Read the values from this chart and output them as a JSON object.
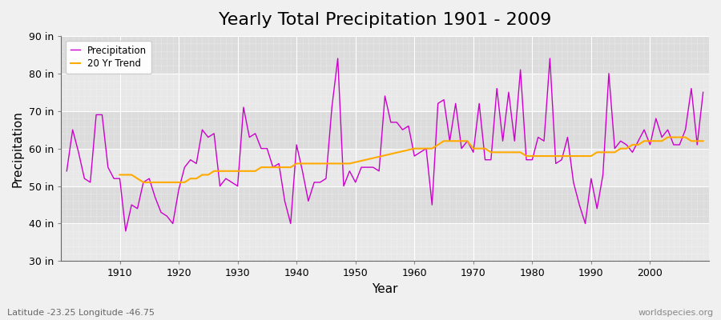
{
  "title": "Yearly Total Precipitation 1901 - 2009",
  "xlabel": "Year",
  "ylabel": "Precipitation",
  "subtitle": "Latitude -23.25 Longitude -46.75",
  "watermark": "worldspecies.org",
  "years": [
    1901,
    1902,
    1903,
    1904,
    1905,
    1906,
    1907,
    1908,
    1909,
    1910,
    1911,
    1912,
    1913,
    1914,
    1915,
    1916,
    1917,
    1918,
    1919,
    1920,
    1921,
    1922,
    1923,
    1924,
    1925,
    1926,
    1927,
    1928,
    1929,
    1930,
    1931,
    1932,
    1933,
    1934,
    1935,
    1936,
    1937,
    1938,
    1939,
    1940,
    1941,
    1942,
    1943,
    1944,
    1945,
    1946,
    1947,
    1948,
    1949,
    1950,
    1951,
    1952,
    1953,
    1954,
    1955,
    1956,
    1957,
    1958,
    1959,
    1960,
    1961,
    1962,
    1963,
    1964,
    1965,
    1966,
    1967,
    1968,
    1969,
    1970,
    1971,
    1972,
    1973,
    1974,
    1975,
    1976,
    1977,
    1978,
    1979,
    1980,
    1981,
    1982,
    1983,
    1984,
    1985,
    1986,
    1987,
    1988,
    1989,
    1990,
    1991,
    1992,
    1993,
    1994,
    1995,
    1996,
    1997,
    1998,
    1999,
    2000,
    2001,
    2002,
    2003,
    2004,
    2005,
    2006,
    2007,
    2008,
    2009
  ],
  "precip": [
    54,
    65,
    59,
    52,
    51,
    69,
    69,
    55,
    52,
    52,
    38,
    45,
    44,
    51,
    52,
    47,
    43,
    42,
    40,
    49,
    55,
    57,
    56,
    65,
    63,
    64,
    50,
    52,
    51,
    50,
    71,
    63,
    64,
    60,
    60,
    55,
    56,
    46,
    40,
    61,
    54,
    46,
    51,
    51,
    52,
    71,
    84,
    50,
    54,
    51,
    55,
    55,
    55,
    54,
    74,
    67,
    67,
    65,
    66,
    58,
    59,
    60,
    45,
    72,
    73,
    62,
    72,
    60,
    62,
    59,
    72,
    57,
    57,
    76,
    62,
    75,
    62,
    81,
    57,
    57,
    63,
    62,
    84,
    56,
    57,
    63,
    51,
    45,
    40,
    52,
    44,
    53,
    80,
    60,
    62,
    61,
    59,
    62,
    65,
    61,
    68,
    63,
    65,
    61,
    61,
    65,
    76,
    61,
    75
  ],
  "trend_years": [
    1910,
    1911,
    1912,
    1913,
    1914,
    1915,
    1916,
    1917,
    1918,
    1919,
    1920,
    1921,
    1922,
    1923,
    1924,
    1925,
    1926,
    1927,
    1928,
    1929,
    1930,
    1931,
    1932,
    1933,
    1934,
    1935,
    1936,
    1937,
    1938,
    1939,
    1940,
    1941,
    1942,
    1943,
    1944,
    1945,
    1946,
    1947,
    1948,
    1949,
    1960,
    1961,
    1962,
    1963,
    1964,
    1965,
    1966,
    1967,
    1968,
    1969,
    1970,
    1971,
    1972,
    1973,
    1974,
    1975,
    1976,
    1977,
    1978,
    1979,
    1980,
    1981,
    1982,
    1983,
    1984,
    1985,
    1986,
    1987,
    1988,
    1989,
    1990,
    1991,
    1992,
    1993,
    1994,
    1995,
    1996,
    1997,
    1998,
    1999,
    2000,
    2001,
    2002,
    2003,
    2004,
    2005,
    2006,
    2007,
    2008,
    2009
  ],
  "trend": [
    53,
    53,
    53,
    52,
    51,
    51,
    51,
    51,
    51,
    51,
    51,
    51,
    52,
    52,
    53,
    53,
    54,
    54,
    54,
    54,
    54,
    54,
    54,
    54,
    55,
    55,
    55,
    55,
    55,
    55,
    56,
    56,
    56,
    56,
    56,
    56,
    56,
    56,
    56,
    56,
    60,
    60,
    60,
    60,
    61,
    62,
    62,
    62,
    62,
    62,
    60,
    60,
    60,
    59,
    59,
    59,
    59,
    59,
    59,
    58,
    58,
    58,
    58,
    58,
    58,
    58,
    58,
    58,
    58,
    58,
    58,
    59,
    59,
    59,
    59,
    60,
    60,
    61,
    61,
    62,
    62,
    62,
    62,
    63,
    63,
    63,
    63,
    62,
    62,
    62
  ],
  "precip_color": "#cc00cc",
  "trend_color": "#ffaa00",
  "bg_color": "#f0f0f0",
  "plot_bg_light": "#e8e8e8",
  "plot_bg_dark": "#dcdcdc",
  "ylim": [
    30,
    90
  ],
  "xlim": [
    1901,
    2009
  ],
  "yticks": [
    30,
    40,
    50,
    60,
    70,
    80,
    90
  ],
  "ytick_labels": [
    "30 in",
    "40 in",
    "50 in",
    "60 in",
    "70 in",
    "80 in",
    "90 in"
  ],
  "xticks": [
    1910,
    1920,
    1930,
    1940,
    1950,
    1960,
    1970,
    1980,
    1990,
    2000
  ],
  "title_fontsize": 16,
  "axis_fontsize": 11,
  "tick_fontsize": 9
}
